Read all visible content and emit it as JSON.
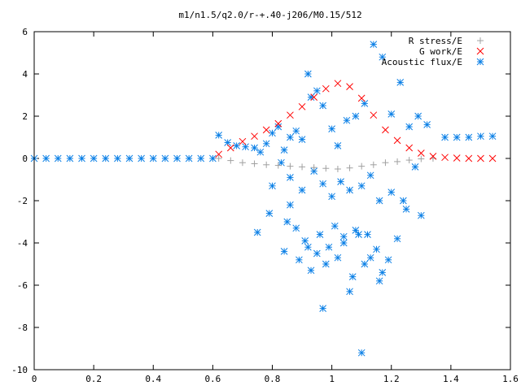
{
  "chart_data": {
    "type": "scatter",
    "title": "m1/n1.5/q2.0/r-+.40-j206/M0.15/512",
    "xlabel": "",
    "ylabel": "",
    "xlim": [
      0,
      1.6
    ],
    "ylim": [
      -10,
      6
    ],
    "x_ticks": [
      0,
      0.2,
      0.4,
      0.6,
      0.8,
      1,
      1.2,
      1.4,
      1.6
    ],
    "x_tick_labels": [
      "0",
      "0.2",
      "0.4",
      "0.6",
      "0.8",
      "1",
      "1.2",
      "1.4",
      "1.6"
    ],
    "y_ticks": [
      -10,
      -8,
      -6,
      -4,
      -2,
      0,
      2,
      4,
      6
    ],
    "y_tick_labels": [
      "-10",
      "-8",
      "-6",
      "-4",
      "-2",
      "0",
      "2",
      "4",
      "6"
    ],
    "grid": false,
    "legend_position": "top-right",
    "series": [
      {
        "name": "R stress/E",
        "marker": "plus",
        "color": "#a0a0a0",
        "x": [
          0.62,
          0.66,
          0.7,
          0.74,
          0.78,
          0.82,
          0.86,
          0.9,
          0.94,
          0.98,
          1.02,
          1.06,
          1.1,
          1.14,
          1.18,
          1.22,
          1.26,
          1.3,
          1.34
        ],
        "y": [
          0.0,
          -0.1,
          -0.2,
          -0.25,
          -0.3,
          -0.33,
          -0.37,
          -0.4,
          -0.43,
          -0.47,
          -0.5,
          -0.45,
          -0.37,
          -0.3,
          -0.2,
          -0.15,
          -0.08,
          -0.02,
          0.0
        ]
      },
      {
        "name": "G work/E",
        "marker": "cross",
        "color": "#ff0000",
        "x": [
          0.62,
          0.66,
          0.7,
          0.74,
          0.78,
          0.82,
          0.86,
          0.9,
          0.94,
          0.98,
          1.02,
          1.06,
          1.1,
          1.14,
          1.18,
          1.22,
          1.26,
          1.3,
          1.34,
          1.38,
          1.42,
          1.46,
          1.5,
          1.54
        ],
        "y": [
          0.2,
          0.5,
          0.8,
          1.05,
          1.35,
          1.65,
          2.05,
          2.45,
          2.9,
          3.3,
          3.55,
          3.4,
          2.85,
          2.05,
          1.35,
          0.85,
          0.5,
          0.25,
          0.1,
          0.05,
          0.02,
          0.0,
          0.0,
          0.0
        ]
      },
      {
        "name": "Acoustic flux/E",
        "marker": "star",
        "color": "#0a7fe6",
        "x": [
          0.0,
          0.04,
          0.08,
          0.12,
          0.16,
          0.2,
          0.24,
          0.28,
          0.32,
          0.36,
          0.4,
          0.44,
          0.48,
          0.52,
          0.56,
          0.6,
          0.62,
          0.65,
          0.68,
          0.71,
          0.74,
          0.76,
          0.78,
          0.8,
          0.82,
          0.84,
          0.86,
          0.88,
          0.9,
          0.92,
          0.93,
          0.95,
          0.97,
          1.0,
          1.02,
          1.05,
          1.08,
          1.11,
          1.14,
          1.17,
          1.2,
          1.23,
          1.26,
          1.29,
          1.32,
          0.8,
          0.83,
          0.86,
          0.9,
          0.94,
          0.97,
          1.0,
          1.03,
          1.06,
          1.1,
          1.13,
          1.16,
          1.2,
          1.24,
          1.28,
          0.75,
          0.79,
          0.85,
          0.88,
          0.92,
          0.96,
          1.01,
          1.04,
          1.08,
          1.12,
          1.15,
          1.19,
          1.22,
          1.25,
          1.3,
          0.84,
          0.89,
          0.93,
          0.98,
          1.02,
          1.07,
          1.11,
          1.16,
          0.86,
          0.91,
          0.95,
          0.99,
          1.04,
          1.09,
          1.13,
          1.17,
          0.97,
          1.06,
          1.1,
          1.38,
          1.42,
          1.46,
          1.5,
          1.54
        ],
        "y": [
          0,
          0,
          0,
          0,
          0,
          0,
          0,
          0,
          0,
          0,
          0,
          0,
          0,
          0,
          0,
          0,
          1.1,
          0.75,
          0.6,
          0.55,
          0.5,
          0.3,
          0.7,
          1.2,
          1.5,
          0.4,
          1.0,
          1.3,
          0.9,
          4.0,
          2.9,
          3.2,
          2.5,
          1.4,
          0.6,
          1.8,
          2.0,
          2.6,
          5.4,
          4.8,
          2.1,
          3.6,
          1.5,
          2.0,
          1.6,
          -1.3,
          -0.2,
          -0.9,
          -1.5,
          -0.6,
          -1.2,
          -1.8,
          -1.1,
          -1.5,
          -1.3,
          -0.8,
          -2.0,
          -1.6,
          -2.0,
          -0.4,
          -3.5,
          -2.6,
          -3.0,
          -3.3,
          -4.2,
          -3.6,
          -3.2,
          -4.0,
          -3.4,
          -3.6,
          -4.3,
          -4.8,
          -3.8,
          -2.4,
          -2.7,
          -4.4,
          -4.8,
          -5.3,
          -5.0,
          -4.7,
          -5.6,
          -5.0,
          -5.8,
          -2.2,
          -3.9,
          -4.5,
          -4.2,
          -3.7,
          -3.6,
          -4.7,
          -5.4,
          -7.1,
          -6.3,
          -9.2,
          1.0,
          1.0,
          1.0,
          1.05,
          1.05
        ]
      }
    ]
  }
}
